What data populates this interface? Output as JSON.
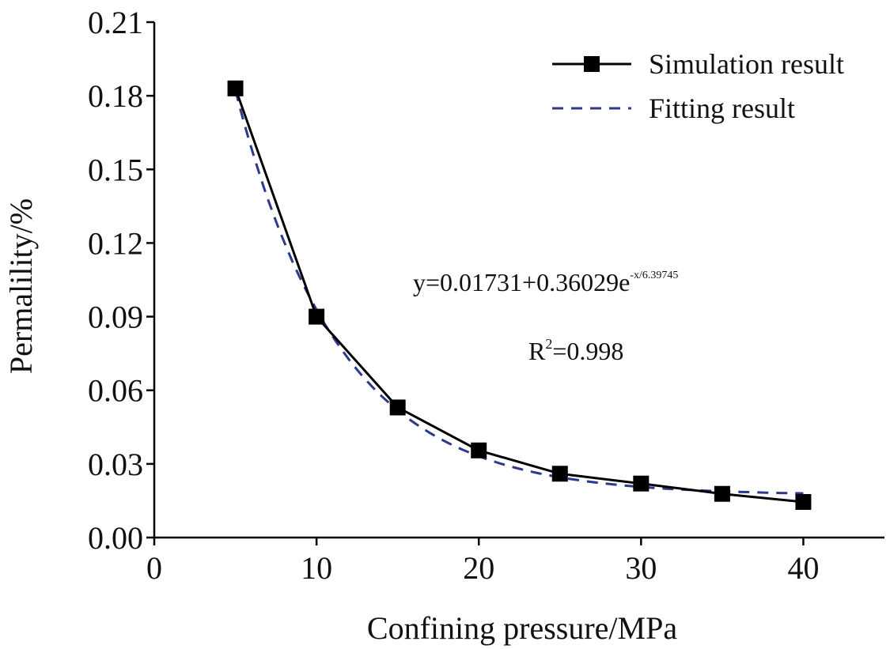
{
  "chart_data": {
    "type": "line",
    "xlabel": "Confining pressure/MPa",
    "ylabel": "Permalility/%",
    "xlim": [
      0,
      45
    ],
    "ylim": [
      0,
      0.21
    ],
    "xticks": [
      "0",
      "10",
      "20",
      "30",
      "40"
    ],
    "yticks": [
      "0.00",
      "0.03",
      "0.06",
      "0.09",
      "0.12",
      "0.15",
      "0.18",
      "0.21"
    ],
    "series": [
      {
        "name": "Simulation result",
        "style": "solid-square-markers",
        "color": "#000000",
        "x": [
          5,
          10,
          15,
          20,
          25,
          30,
          35,
          40
        ],
        "values": [
          0.183,
          0.09,
          0.053,
          0.0355,
          0.026,
          0.022,
          0.0178,
          0.0145
        ]
      },
      {
        "name": "Fitting result",
        "style": "dashed",
        "color": "#2d3a8c",
        "equation": {
          "a": 0.01731,
          "b": 0.36029,
          "t": 6.39745
        }
      }
    ],
    "legend": "top-right",
    "annotations": {
      "equation_main": "y=0.01731+0.36029e",
      "equation_exp": "-x/6.39745",
      "r2_prefix": "R",
      "r2_sup": "2",
      "r2_value": "=0.998"
    }
  }
}
